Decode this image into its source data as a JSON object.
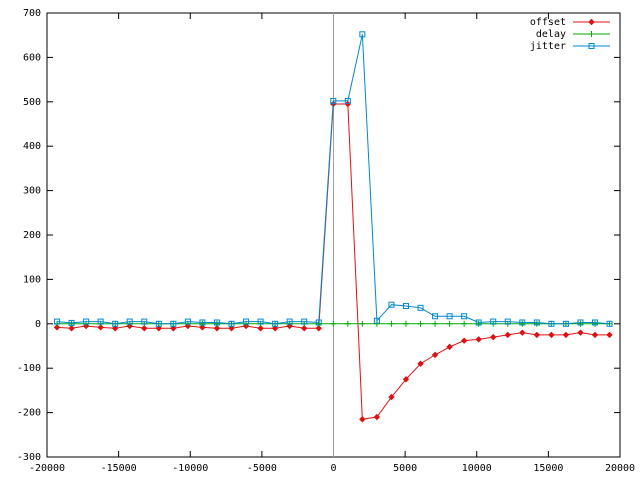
{
  "chart_data": {
    "type": "line",
    "x": [
      -19300,
      -18285,
      -17270,
      -16255,
      -15240,
      -14225,
      -13210,
      -12195,
      -11180,
      -10165,
      -9150,
      -8135,
      -7120,
      -6105,
      -5090,
      -4075,
      -3060,
      -2045,
      -1030,
      -15,
      1000,
      2015,
      3030,
      4045,
      5060,
      6075,
      7090,
      8105,
      9120,
      10135,
      11150,
      12165,
      13180,
      14195,
      15210,
      16225,
      17240,
      18255,
      19270
    ],
    "series": [
      {
        "name": "offset",
        "color": "#dd1111",
        "marker": "diamond",
        "values": [
          -8,
          -10,
          -5,
          -8,
          -10,
          -5,
          -10,
          -10,
          -10,
          -5,
          -8,
          -10,
          -10,
          -5,
          -10,
          -10,
          -5,
          -10,
          -10,
          495,
          495,
          -215,
          -210,
          -165,
          -125,
          -90,
          -70,
          -52,
          -38,
          -35,
          -30,
          -25,
          -20,
          -25,
          -25,
          -25,
          -20,
          -25,
          -25
        ]
      },
      {
        "name": "delay",
        "color": "#00aa00",
        "marker": "plus",
        "values": [
          0,
          0,
          0,
          0,
          0,
          0,
          0,
          0,
          0,
          0,
          0,
          0,
          0,
          0,
          0,
          0,
          0,
          0,
          0,
          0,
          0,
          0,
          0,
          0,
          0,
          0,
          0,
          0,
          0,
          0,
          0,
          0,
          0,
          0,
          0,
          0,
          0,
          0,
          0
        ]
      },
      {
        "name": "jitter",
        "color": "#0088cc",
        "marker": "square",
        "values": [
          5,
          2,
          5,
          5,
          0,
          5,
          5,
          0,
          0,
          5,
          3,
          3,
          0,
          5,
          5,
          0,
          5,
          5,
          3,
          502,
          502,
          652,
          7,
          43,
          40,
          36,
          17,
          17,
          17,
          3,
          5,
          5,
          3,
          3,
          0,
          0,
          3,
          3,
          0
        ]
      }
    ],
    "xlim": [
      -20000,
      20000
    ],
    "xticks": [
      -20000,
      -15000,
      -10000,
      -5000,
      0,
      5000,
      10000,
      15000,
      20000
    ],
    "ylim": [
      -300,
      700
    ],
    "yticks": [
      -300,
      -200,
      -100,
      0,
      100,
      200,
      300,
      400,
      500,
      600,
      700
    ],
    "zeroaxis": "x",
    "legend": "top-right"
  }
}
